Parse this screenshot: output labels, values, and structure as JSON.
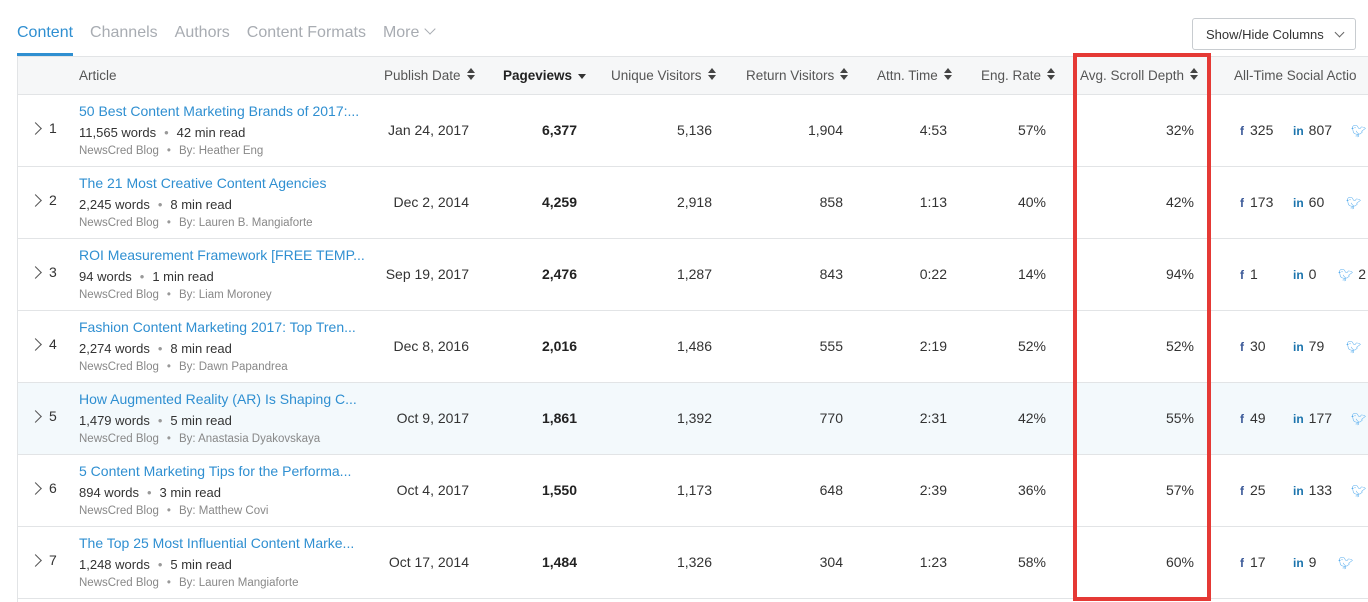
{
  "tabs": [
    {
      "label": "Content",
      "active": true
    },
    {
      "label": "Channels",
      "active": false
    },
    {
      "label": "Authors",
      "active": false
    },
    {
      "label": "Content Formats",
      "active": false
    },
    {
      "label": "More",
      "active": false
    }
  ],
  "show_hide_label": "Show/Hide Columns",
  "columns": {
    "article": "Article",
    "publish_date": "Publish Date",
    "pageviews": "Pageviews",
    "unique_visitors": "Unique Visitors",
    "return_visitors": "Return Visitors",
    "attn_time": "Attn. Time",
    "eng_rate": "Eng. Rate",
    "scroll_depth": "Avg. Scroll Depth",
    "social": "All-Time Social Actio"
  },
  "rows": [
    {
      "rank": "1",
      "title": "50 Best Content Marketing Brands of 2017:...",
      "words": "11,565 words",
      "read": "42 min read",
      "source": "NewsCred Blog",
      "author": "By: Heather Eng",
      "date": "Jan 24, 2017",
      "pageviews": "6,377",
      "unique": "5,136",
      "return": "1,904",
      "attn": "4:53",
      "eng": "57%",
      "scroll": "32%",
      "fb": "325",
      "li": "807",
      "tw": ""
    },
    {
      "rank": "2",
      "title": "The 21 Most Creative Content Agencies",
      "words": "2,245 words",
      "read": "8 min read",
      "source": "NewsCred Blog",
      "author": "By: Lauren B. Mangiaforte",
      "date": "Dec 2, 2014",
      "pageviews": "4,259",
      "unique": "2,918",
      "return": "858",
      "attn": "1:13",
      "eng": "40%",
      "scroll": "42%",
      "fb": "173",
      "li": "60",
      "tw": ""
    },
    {
      "rank": "3",
      "title": "ROI Measurement Framework [FREE TEMP...",
      "words": "94 words",
      "read": "1 min read",
      "source": "NewsCred Blog",
      "author": "By: Liam Moroney",
      "date": "Sep 19, 2017",
      "pageviews": "2,476",
      "unique": "1,287",
      "return": "843",
      "attn": "0:22",
      "eng": "14%",
      "scroll": "94%",
      "fb": "1",
      "li": "0",
      "tw": "2"
    },
    {
      "rank": "4",
      "title": "Fashion Content Marketing 2017: Top Tren...",
      "words": "2,274 words",
      "read": "8 min read",
      "source": "NewsCred Blog",
      "author": "By: Dawn Papandrea",
      "date": "Dec 8, 2016",
      "pageviews": "2,016",
      "unique": "1,486",
      "return": "555",
      "attn": "2:19",
      "eng": "52%",
      "scroll": "52%",
      "fb": "30",
      "li": "79",
      "tw": ""
    },
    {
      "rank": "5",
      "title": "How Augmented Reality (AR) Is Shaping C...",
      "words": "1,479 words",
      "read": "5 min read",
      "source": "NewsCred Blog",
      "author": "By: Anastasia Dyakovskaya",
      "date": "Oct 9, 2017",
      "pageviews": "1,861",
      "unique": "1,392",
      "return": "770",
      "attn": "2:31",
      "eng": "42%",
      "scroll": "55%",
      "fb": "49",
      "li": "177",
      "tw": ""
    },
    {
      "rank": "6",
      "title": "5 Content Marketing Tips for the Performa...",
      "words": "894 words",
      "read": "3 min read",
      "source": "NewsCred Blog",
      "author": "By: Matthew Covi",
      "date": "Oct 4, 2017",
      "pageviews": "1,550",
      "unique": "1,173",
      "return": "648",
      "attn": "2:39",
      "eng": "36%",
      "scroll": "57%",
      "fb": "25",
      "li": "133",
      "tw": ""
    },
    {
      "rank": "7",
      "title": "The Top 25 Most Influential Content Marke...",
      "words": "1,248 words",
      "read": "5 min read",
      "source": "NewsCred Blog",
      "author": "By: Lauren Mangiaforte",
      "date": "Oct 17, 2014",
      "pageviews": "1,484",
      "unique": "1,326",
      "return": "304",
      "attn": "1:23",
      "eng": "58%",
      "scroll": "60%",
      "fb": "17",
      "li": "9",
      "tw": ""
    }
  ],
  "colors": {
    "accent": "#2f8fd1",
    "highlight_box": "#e53935",
    "facebook": "#3b5998",
    "linkedin": "#1b74ad",
    "twitter": "#55acee"
  }
}
